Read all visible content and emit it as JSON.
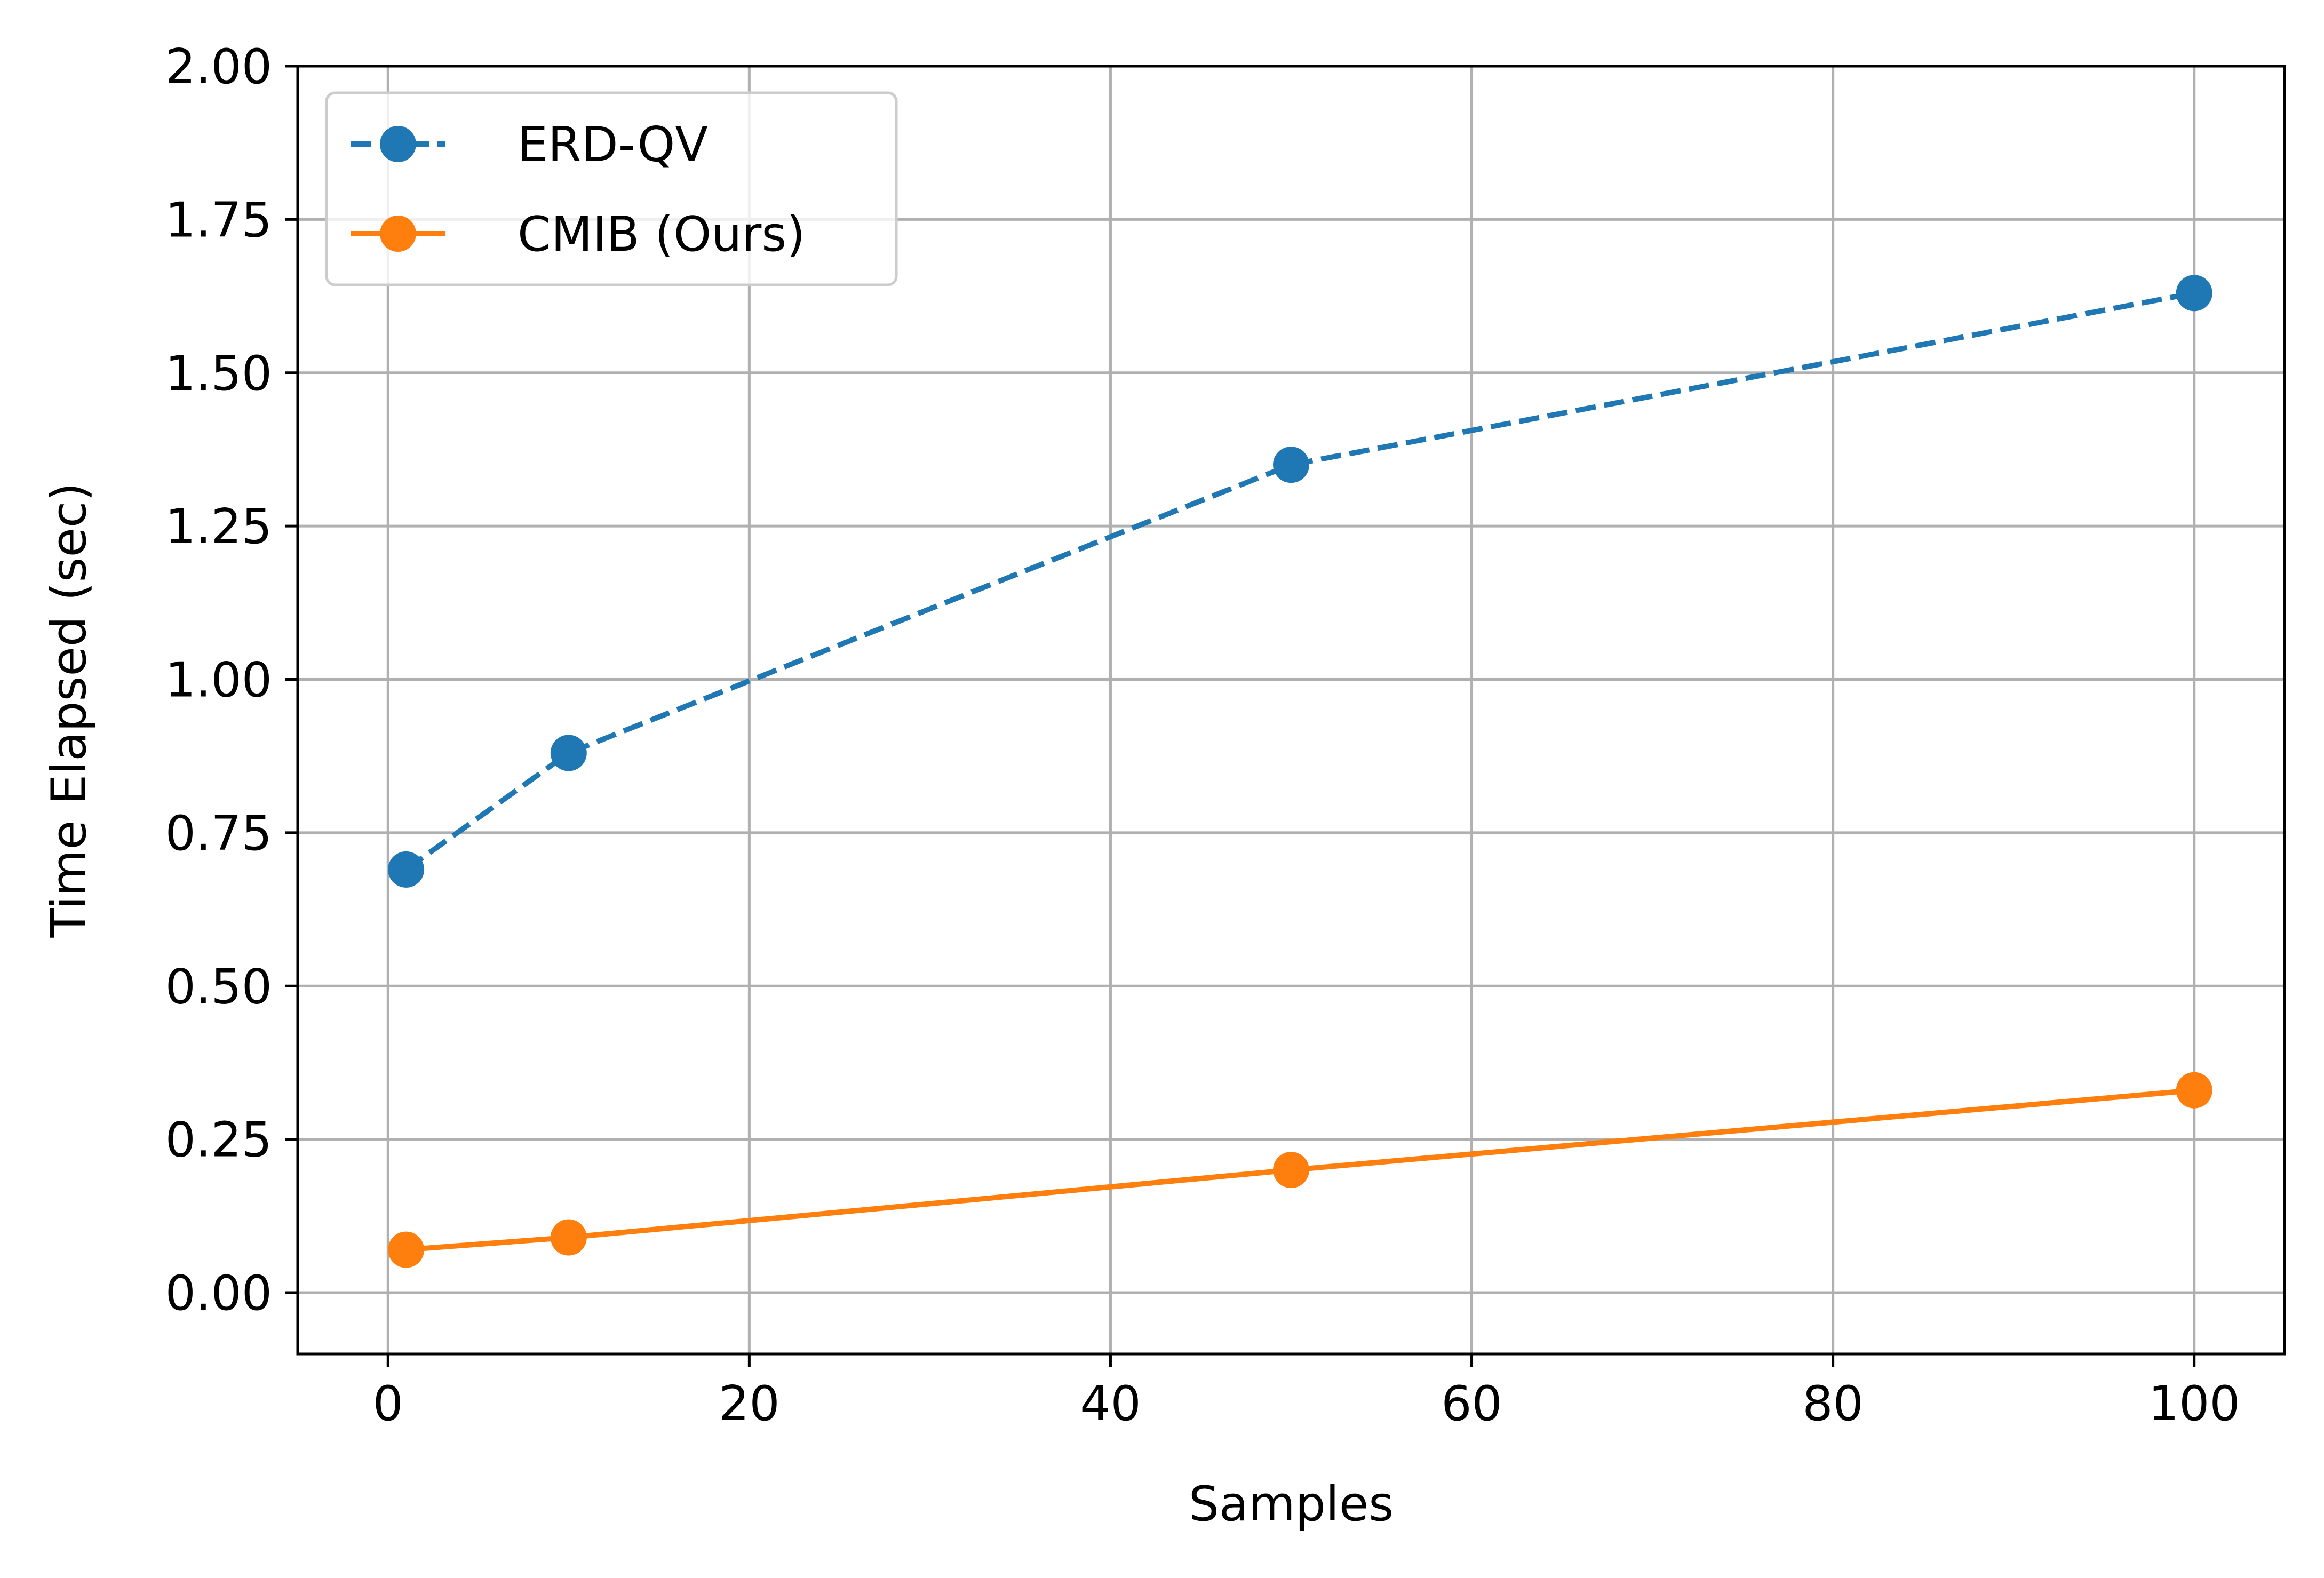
{
  "chart_data": {
    "type": "line",
    "title": "",
    "xlabel": "Samples",
    "ylabel": "Time Elapsed (sec)",
    "xlim": [
      -5,
      105
    ],
    "ylim": [
      -0.1,
      2.0
    ],
    "x_ticks": [
      0,
      20,
      40,
      60,
      80,
      100
    ],
    "x_tick_labels": [
      "0",
      "20",
      "40",
      "60",
      "80",
      "100"
    ],
    "y_ticks": [
      0.0,
      0.25,
      0.5,
      0.75,
      1.0,
      1.25,
      1.5,
      1.75,
      2.0
    ],
    "y_tick_labels": [
      "0.00",
      "0.25",
      "0.50",
      "0.75",
      "1.00",
      "1.25",
      "1.50",
      "1.75",
      "2.00"
    ],
    "grid": true,
    "legend_position": "upper-left",
    "series": [
      {
        "name": "ERD-QV",
        "color": "#1f77b4",
        "line_style": "dashed",
        "marker": "circle",
        "x": [
          1,
          10,
          50,
          100
        ],
        "y": [
          0.69,
          0.88,
          1.35,
          1.63
        ]
      },
      {
        "name": "CMIB (Ours)",
        "color": "#ff7f0e",
        "line_style": "solid",
        "marker": "circle",
        "x": [
          1,
          10,
          50,
          100
        ],
        "y": [
          0.07,
          0.09,
          0.2,
          0.33
        ]
      }
    ]
  }
}
